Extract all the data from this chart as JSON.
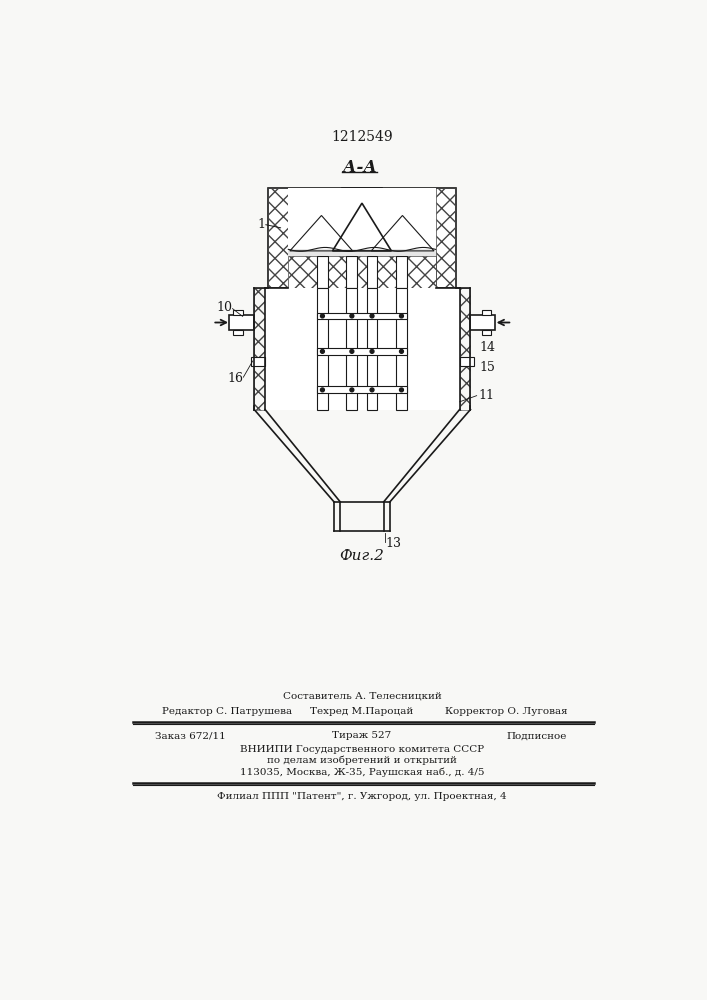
{
  "patent_number": "1212549",
  "section_label": "А-А",
  "fig_label": "Фиг.2",
  "bg_color": "#f8f8f6",
  "line_color": "#1a1a1a",
  "label_1": "1",
  "label_10": "10",
  "label_11": "11",
  "label_13": "13",
  "label_14": "14",
  "label_15": "15",
  "label_16": "16",
  "footer_line1": "Составитель А. Телесницкий",
  "footer_line2_left": "Редактор С. Патрушева",
  "footer_line2_mid": "Техред М.Пароцай",
  "footer_line2_right": "Корректор О. Луговая",
  "footer_line3_left": "Заказ 672/11",
  "footer_line3_mid": "Тираж 527",
  "footer_line3_right": "Подписное",
  "footer_line4": "ВНИИПИ Государственного комитета СССР",
  "footer_line5": "по делам изобретений и открытий",
  "footer_line6": "113035, Москва, Ж-35, Раушская наб., д. 4/5",
  "footer_line7": "Филиал ППП \"Патент\", г. Ужгород, ул. Проектная, 4"
}
